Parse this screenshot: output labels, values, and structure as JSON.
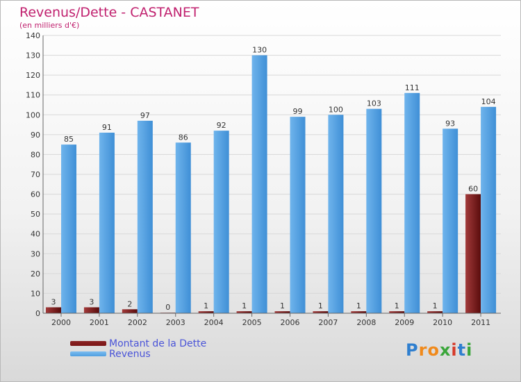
{
  "chart_data": {
    "type": "bar",
    "title": "Revenus/Dette - CASTANET",
    "subtitle": "(en milliers d'€)",
    "categories": [
      "2000",
      "2001",
      "2002",
      "2003",
      "2004",
      "2005",
      "2006",
      "2007",
      "2008",
      "2009",
      "2010",
      "2011"
    ],
    "series": [
      {
        "name": "Montant de la Dette",
        "color": "#7a1414",
        "values": [
          3,
          3,
          2,
          0,
          1,
          1,
          1,
          1,
          1,
          1,
          1,
          60
        ]
      },
      {
        "name": "Revenus",
        "color": "#4f9fe0",
        "values": [
          85,
          91,
          97,
          86,
          92,
          130,
          99,
          100,
          103,
          111,
          93,
          104
        ]
      }
    ],
    "ylim": [
      0,
      140
    ],
    "yticks": [
      0,
      10,
      20,
      30,
      40,
      50,
      60,
      70,
      80,
      90,
      100,
      110,
      120,
      130,
      140
    ],
    "xlabel": "",
    "ylabel": "",
    "grid": true,
    "legend_position": "bottom-left"
  },
  "branding": {
    "letters": [
      {
        "char": "P",
        "color": "#2f7fcf"
      },
      {
        "char": "r",
        "color": "#f08a1c"
      },
      {
        "char": "o",
        "color": "#f08a1c"
      },
      {
        "char": "x",
        "color": "#3aa63a"
      },
      {
        "char": "i",
        "color": "#d63a2a"
      },
      {
        "char": "t",
        "color": "#2f7fcf"
      },
      {
        "char": "i",
        "color": "#3aa63a"
      }
    ]
  }
}
